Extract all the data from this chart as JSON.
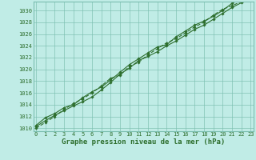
{
  "title": "Graphe pression niveau de la mer (hPa)",
  "hours": [
    0,
    1,
    2,
    3,
    4,
    5,
    6,
    7,
    8,
    9,
    10,
    11,
    12,
    13,
    14,
    15,
    16,
    17,
    18,
    19,
    20,
    21,
    22,
    23
  ],
  "line1": [
    1010.3,
    1011.3,
    1012.2,
    1013.0,
    1013.8,
    1014.5,
    1015.3,
    1016.5,
    1017.8,
    1019.2,
    1020.2,
    1021.5,
    1022.2,
    1023.0,
    1024.0,
    1024.8,
    1025.8,
    1026.8,
    1027.5,
    1028.5,
    1029.5,
    1030.5,
    1031.3,
    1032.0
  ],
  "line2": [
    1010.0,
    1011.0,
    1012.0,
    1013.2,
    1014.2,
    1015.0,
    1016.0,
    1017.2,
    1018.5,
    1019.0,
    1020.5,
    1021.2,
    1022.5,
    1023.5,
    1024.5,
    1025.2,
    1026.2,
    1027.2,
    1028.0,
    1029.2,
    1030.2,
    1030.8,
    1031.5,
    1032.5
  ],
  "line3": [
    1010.5,
    1011.8,
    1012.5,
    1013.5,
    1014.0,
    1015.2,
    1016.2,
    1017.0,
    1018.2,
    1019.5,
    1020.8,
    1021.8,
    1022.8,
    1023.8,
    1024.2,
    1025.5,
    1026.5,
    1027.5,
    1028.2,
    1029.0,
    1030.0,
    1031.2,
    1032.0,
    1032.8
  ],
  "line_color": "#2d6e2d",
  "bg_color": "#c0ece6",
  "grid_color": "#7bbfb0",
  "ylim": [
    1009.5,
    1031.5
  ],
  "yticks": [
    1010,
    1012,
    1014,
    1016,
    1018,
    1020,
    1022,
    1024,
    1026,
    1028,
    1030
  ],
  "marker": "D",
  "marker_size": 1.8,
  "linewidth": 0.8,
  "title_fontsize": 6.5,
  "tick_fontsize": 5.0
}
